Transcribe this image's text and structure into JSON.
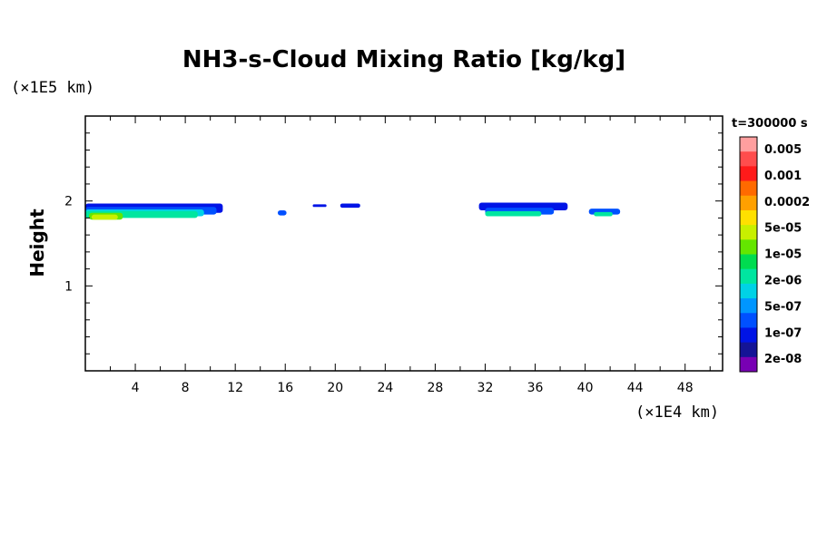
{
  "chart_data": {
    "type": "heatmap",
    "title": "NH3-s-Cloud Mixing Ratio [kg/kg]",
    "ylabel": "Height",
    "xlabel": "",
    "x_scale_note": "(×1E4 km)",
    "y_scale_note": "(×1E5 km)",
    "time_label": "t=300000 s",
    "xlim": [
      0,
      51
    ],
    "ylim": [
      0,
      3
    ],
    "x_ticks": [
      4,
      8,
      12,
      16,
      20,
      24,
      28,
      32,
      36,
      40,
      44,
      48
    ],
    "y_ticks": [
      1,
      2
    ],
    "colorbar": {
      "labels": [
        "0.005",
        "0.001",
        "0.0002",
        "5e-05",
        "1e-05",
        "2e-06",
        "5e-07",
        "1e-07",
        "2e-08"
      ],
      "colors": [
        "#ff9f9f",
        "#ff4d4d",
        "#ff1a1a",
        "#ff6a00",
        "#ffa000",
        "#ffe000",
        "#c8f000",
        "#64e600",
        "#00dc50",
        "#00e6a0",
        "#00d2e6",
        "#0096ff",
        "#0050ff",
        "#0014e6",
        "#141496",
        "#7800b4"
      ]
    },
    "cloud_cells": [
      {
        "x0": 0.0,
        "x1": 11.0,
        "y0": 1.86,
        "y1": 1.97,
        "level": "2e-08"
      },
      {
        "x0": 0.0,
        "x1": 10.5,
        "y0": 1.84,
        "y1": 1.93,
        "level": "1e-07"
      },
      {
        "x0": 0.0,
        "x1": 9.5,
        "y0": 1.82,
        "y1": 1.9,
        "level": "5e-07"
      },
      {
        "x0": 0.0,
        "x1": 9.0,
        "y0": 1.8,
        "y1": 1.88,
        "level": "2e-06"
      },
      {
        "x0": 0.3,
        "x1": 3.0,
        "y0": 1.78,
        "y1": 1.86,
        "level": "1e-05"
      },
      {
        "x0": 0.5,
        "x1": 2.6,
        "y0": 1.78,
        "y1": 1.84,
        "level": "5e-05"
      },
      {
        "x0": 15.4,
        "x1": 16.1,
        "y0": 1.83,
        "y1": 1.89,
        "level": "1e-07"
      },
      {
        "x0": 18.2,
        "x1": 19.3,
        "y0": 1.93,
        "y1": 1.96,
        "level": "2e-08"
      },
      {
        "x0": 20.4,
        "x1": 22.0,
        "y0": 1.92,
        "y1": 1.97,
        "level": "2e-08"
      },
      {
        "x0": 31.5,
        "x1": 38.6,
        "y0": 1.89,
        "y1": 1.98,
        "level": "2e-08"
      },
      {
        "x0": 32.0,
        "x1": 37.5,
        "y0": 1.84,
        "y1": 1.92,
        "level": "1e-07"
      },
      {
        "x0": 32.0,
        "x1": 36.5,
        "y0": 1.82,
        "y1": 1.88,
        "level": "2e-06"
      },
      {
        "x0": 40.3,
        "x1": 42.8,
        "y0": 1.84,
        "y1": 1.91,
        "level": "1e-07"
      },
      {
        "x0": 40.7,
        "x1": 42.2,
        "y0": 1.82,
        "y1": 1.87,
        "level": "2e-06"
      }
    ]
  }
}
